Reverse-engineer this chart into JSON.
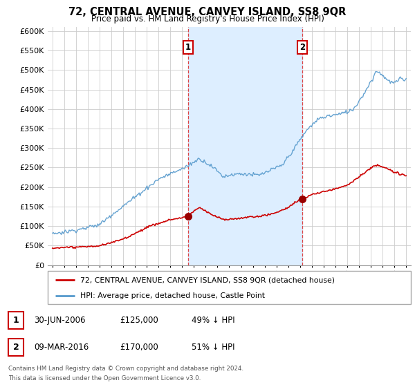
{
  "title": "72, CENTRAL AVENUE, CANVEY ISLAND, SS8 9QR",
  "subtitle": "Price paid vs. HM Land Registry's House Price Index (HPI)",
  "ylabel_ticks": [
    "£0",
    "£50K",
    "£100K",
    "£150K",
    "£200K",
    "£250K",
    "£300K",
    "£350K",
    "£400K",
    "£450K",
    "£500K",
    "£550K",
    "£600K"
  ],
  "ytick_values": [
    0,
    50000,
    100000,
    150000,
    200000,
    250000,
    300000,
    350000,
    400000,
    450000,
    500000,
    550000,
    600000
  ],
  "ylim": [
    0,
    610000
  ],
  "sale1_date": 2006.5,
  "sale1_price": 125000,
  "sale1_label": "1",
  "sale2_date": 2016.2,
  "sale2_price": 170000,
  "sale2_label": "2",
  "legend_line1": "72, CENTRAL AVENUE, CANVEY ISLAND, SS8 9QR (detached house)",
  "legend_line2": "HPI: Average price, detached house, Castle Point",
  "table_row1": [
    "1",
    "30-JUN-2006",
    "£125,000",
    "49% ↓ HPI"
  ],
  "table_row2": [
    "2",
    "09-MAR-2016",
    "£170,000",
    "51% ↓ HPI"
  ],
  "footnote1": "Contains HM Land Registry data © Crown copyright and database right 2024.",
  "footnote2": "This data is licensed under the Open Government Licence v3.0.",
  "line_color_red": "#cc0000",
  "line_color_blue": "#5599cc",
  "shade_color": "#ddeeff",
  "sale_dot_color": "#990000",
  "vline_color": "#dd4444",
  "background_color": "#ffffff",
  "grid_color": "#cccccc"
}
